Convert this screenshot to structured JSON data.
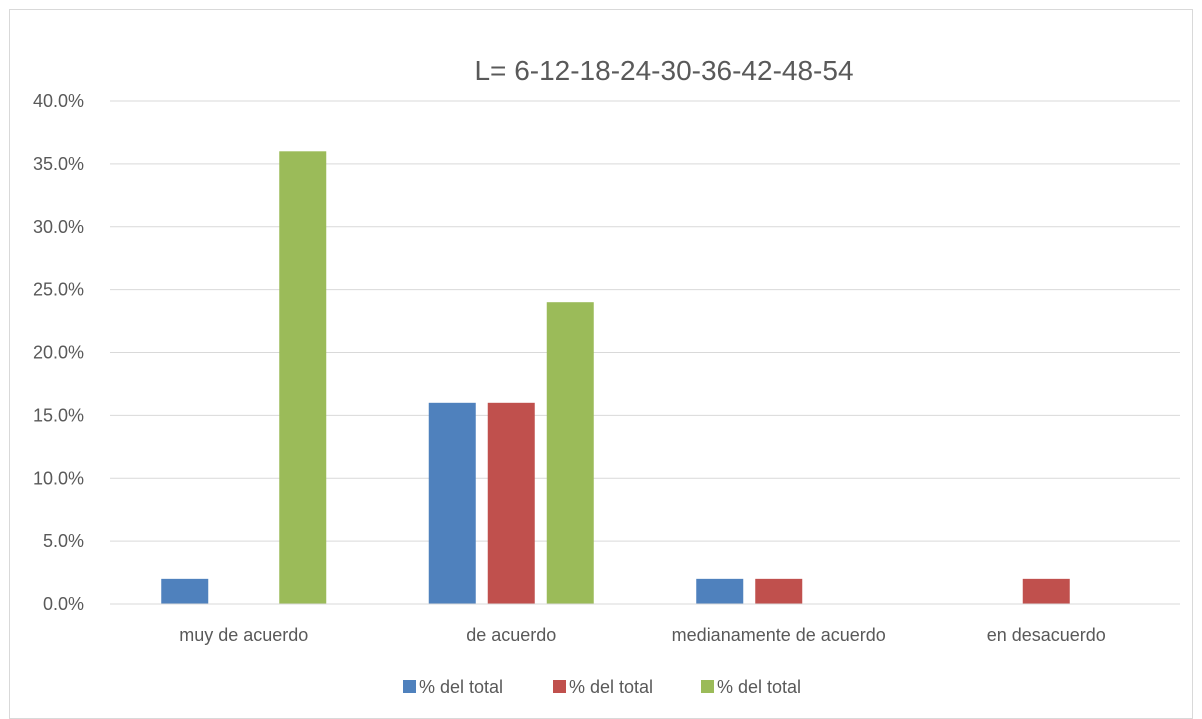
{
  "chart_data": {
    "type": "bar",
    "title": "L= 6-12-18-24-30-36-42-48-54",
    "categories": [
      "muy de acuerdo",
      "de acuerdo",
      "medianamente de acuerdo",
      "en desacuerdo"
    ],
    "series": [
      {
        "name": "% del total",
        "color": "#4f81bd",
        "values": [
          2.0,
          16.0,
          2.0,
          0.0
        ]
      },
      {
        "name": "% del total",
        "color": "#c0504d",
        "values": [
          0.0,
          16.0,
          2.0,
          2.0
        ]
      },
      {
        "name": "% del total",
        "color": "#9bbb59",
        "values": [
          36.0,
          24.0,
          0.0,
          0.0
        ]
      }
    ],
    "yticks": [
      "0.0%",
      "5.0%",
      "10.0%",
      "15.0%",
      "20.0%",
      "25.0%",
      "30.0%",
      "35.0%",
      "40.0%"
    ],
    "ylim": [
      0,
      40
    ],
    "grid": true,
    "legend_position": "bottom"
  }
}
